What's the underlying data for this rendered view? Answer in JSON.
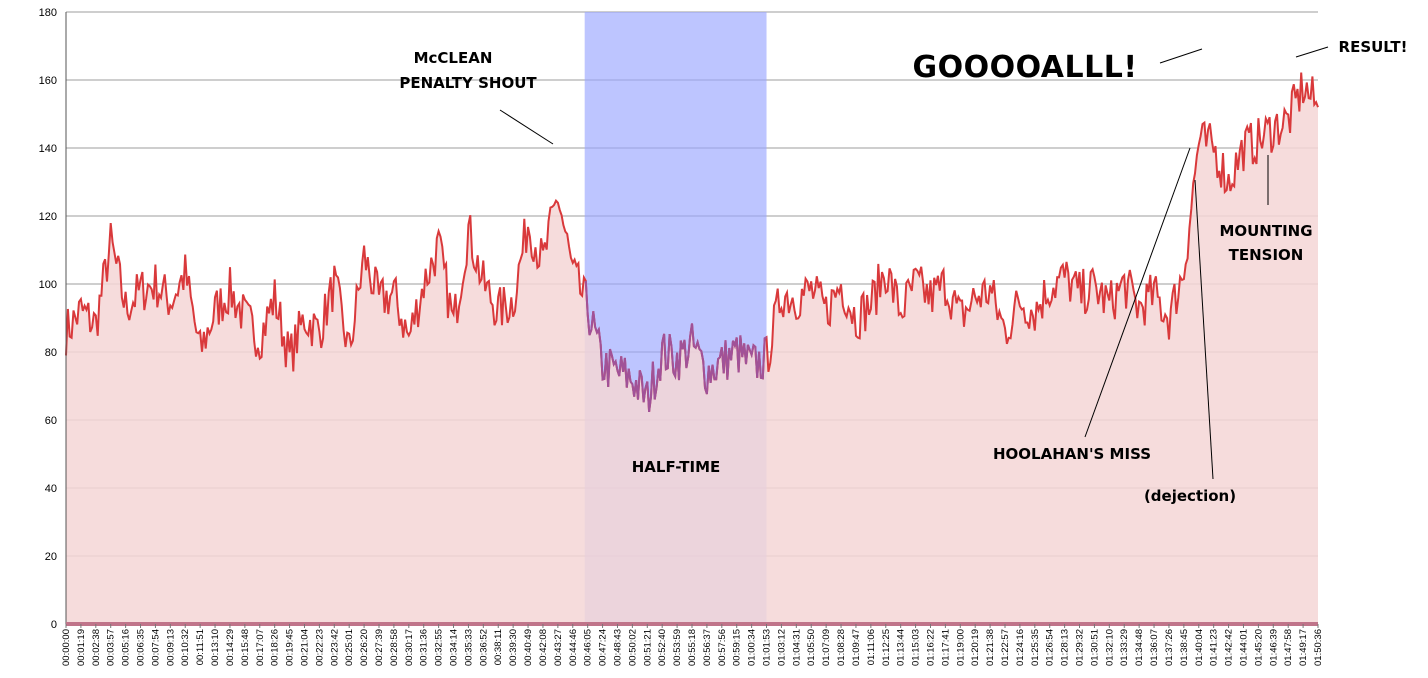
{
  "chart_data": {
    "type": "area",
    "title": "",
    "xlabel": "",
    "ylabel": "",
    "ylim": [
      0,
      180
    ],
    "y_ticks": [
      0,
      20,
      40,
      60,
      80,
      100,
      120,
      140,
      160,
      180
    ],
    "grid": true,
    "x_tick_labels": [
      "00:00:00",
      "00:01:19",
      "00:02:38",
      "00:03:57",
      "00:05:16",
      "00:06:35",
      "00:07:54",
      "00:09:13",
      "00:10:32",
      "00:11:51",
      "00:13:10",
      "00:14:29",
      "00:15:48",
      "00:17:07",
      "00:18:26",
      "00:19:45",
      "00:21:04",
      "00:22:23",
      "00:23:42",
      "00:25:01",
      "00:26:20",
      "00:27:39",
      "00:28:58",
      "00:30:17",
      "00:31:36",
      "00:32:55",
      "00:34:14",
      "00:35:33",
      "00:36:52",
      "00:38:11",
      "00:39:30",
      "00:40:49",
      "00:42:08",
      "00:43:27",
      "00:44:46",
      "00:46:05",
      "00:47:24",
      "00:48:43",
      "00:50:02",
      "00:51:21",
      "00:52:40",
      "00:53:59",
      "00:55:18",
      "00:56:37",
      "00:57:56",
      "00:59:15",
      "01:00:34",
      "01:01:53",
      "01:03:12",
      "01:04:31",
      "01:05:50",
      "01:07:09",
      "01:08:28",
      "01:09:47",
      "01:11:06",
      "01:12:25",
      "01:13:44",
      "01:15:03",
      "01:16:22",
      "01:17:41",
      "01:19:00",
      "01:20:19",
      "01:21:38",
      "01:22:57",
      "01:24:16",
      "01:25:35",
      "01:26:54",
      "01:28:13",
      "01:29:32",
      "01:30:51",
      "01:32:10",
      "01:33:29",
      "01:34:48",
      "01:36:07",
      "01:37:26",
      "01:38:45",
      "01:40:04",
      "01:41:23",
      "01:42:42",
      "01:44:01",
      "01:45:20",
      "01:46:39",
      "01:47:58",
      "01:49:17",
      "01:50:36"
    ],
    "series": [
      {
        "x": [
          "00:00:00",
          "00:01:19",
          "00:02:38",
          "00:03:57",
          "00:05:16",
          "00:06:35",
          "00:07:54",
          "00:09:13",
          "00:10:32",
          "00:11:51",
          "00:13:10",
          "00:14:29",
          "00:15:48",
          "00:17:07",
          "00:18:26",
          "00:19:45",
          "00:21:04",
          "00:22:23",
          "00:23:42",
          "00:25:01",
          "00:26:20",
          "00:27:39",
          "00:28:58",
          "00:30:17",
          "00:31:36",
          "00:32:55",
          "00:34:14",
          "00:35:33",
          "00:36:52",
          "00:38:11",
          "00:39:30",
          "00:40:49",
          "00:42:08",
          "00:43:27",
          "00:44:46",
          "00:46:05",
          "00:47:24",
          "00:48:43",
          "00:50:02",
          "00:51:21",
          "00:52:40",
          "00:53:59",
          "00:55:18",
          "00:56:37",
          "00:57:56",
          "00:59:15",
          "01:00:34",
          "01:01:53",
          "01:03:12",
          "01:04:31",
          "01:05:50",
          "01:07:09",
          "01:08:28",
          "01:09:47",
          "01:11:06",
          "01:12:25",
          "01:13:44",
          "01:15:03",
          "01:16:22",
          "01:17:41",
          "01:19:00",
          "01:20:19",
          "01:21:38",
          "01:22:57",
          "01:24:16",
          "01:25:35",
          "01:26:54",
          "01:28:13",
          "01:29:32",
          "01:30:51",
          "01:32:10",
          "01:33:29",
          "01:34:48",
          "01:36:07",
          "01:37:26",
          "01:38:45",
          "01:40:04",
          "01:41:23",
          "01:42:42",
          "01:44:01",
          "01:45:20",
          "01:46:39",
          "01:47:58",
          "01:49:17",
          "01:50:36"
        ],
        "values": [
          86,
          92,
          88,
          112,
          93,
          98,
          100,
          95,
          103,
          80,
          92,
          98,
          90,
          84,
          96,
          78,
          90,
          86,
          100,
          80,
          108,
          95,
          97,
          84,
          100,
          111,
          88,
          116,
          100,
          92,
          95,
          118,
          106,
          126,
          103,
          93,
          76,
          74,
          72,
          66,
          80,
          78,
          82,
          74,
          77,
          80,
          76,
          78,
          97,
          96,
          98,
          92,
          100,
          90,
          94,
          104,
          92,
          100,
          96,
          100,
          90,
          96,
          98,
          86,
          95,
          92,
          99,
          102,
          97,
          99,
          94,
          100,
          93,
          97,
          90,
          104,
          142,
          140,
          130,
          140,
          142,
          146,
          148,
          158,
          152
        ]
      }
    ],
    "colors": {
      "line": "#d9393b",
      "fill": "#f5d6d6",
      "halftime_band": "#9aa6ff",
      "halftime_line": "#a05298",
      "grid": "#9e9e9e",
      "axis": "#c0748a"
    },
    "annotations": {
      "penalty": [
        "McCLEAN",
        "PENALTY SHOUT"
      ],
      "goal": "GOOOOALLL!",
      "result": "RESULT!",
      "halftime": "HALF-TIME",
      "tension": [
        "MOUNTING",
        "TENSION"
      ],
      "miss": "HOOLAHAN'S MISS",
      "dejection": "(dejection)"
    }
  }
}
